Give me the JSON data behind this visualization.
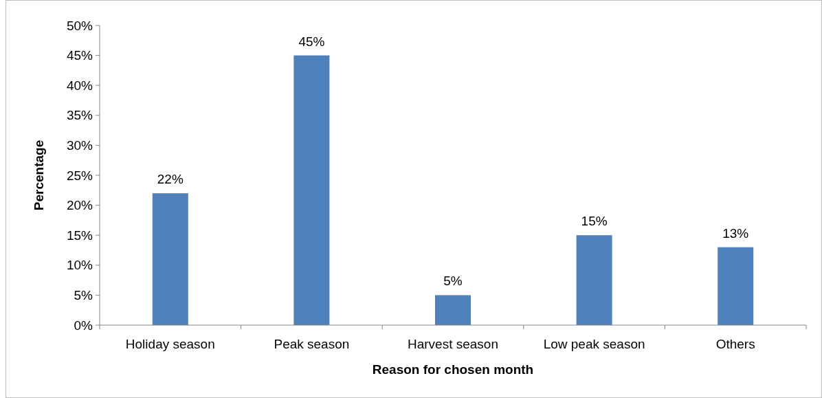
{
  "chart_data": {
    "type": "bar",
    "xlabel": "Reason for chosen month",
    "ylabel": "Percentage",
    "categories": [
      "Holiday season",
      "Peak season",
      "Harvest season",
      "Low peak season",
      "Others"
    ],
    "values": [
      22,
      45,
      5,
      15,
      13
    ],
    "value_labels": [
      "22%",
      "45%",
      "5%",
      "15%",
      "13%"
    ],
    "color": "#4f81bd",
    "ylim": [
      0,
      50
    ],
    "yticks": [
      {
        "value": 0,
        "label": "0%"
      },
      {
        "value": 5,
        "label": "5%"
      },
      {
        "value": 10,
        "label": "10%"
      },
      {
        "value": 15,
        "label": "15%"
      },
      {
        "value": 20,
        "label": "20%"
      },
      {
        "value": 25,
        "label": "25%"
      },
      {
        "value": 30,
        "label": "30%"
      },
      {
        "value": 35,
        "label": "35%"
      },
      {
        "value": 40,
        "label": "40%"
      },
      {
        "value": 45,
        "label": "45%"
      },
      {
        "value": 50,
        "label": "50%"
      }
    ],
    "grid": false
  }
}
